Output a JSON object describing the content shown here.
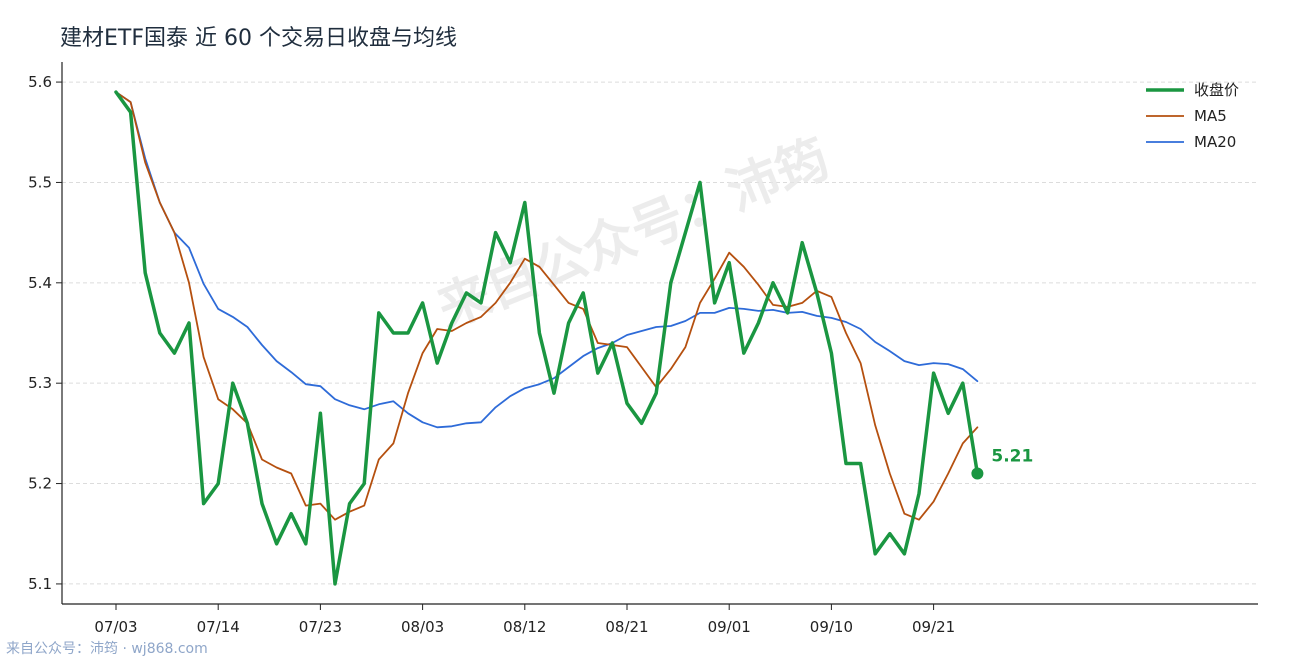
{
  "chart_data": {
    "type": "line",
    "title": "建材ETF国泰 近 60 个交易日收盘与均线",
    "watermark": "来自公众号：沛筠",
    "footer": "来自公众号：沛筠 · wj868.com",
    "xlabel": "",
    "ylabel": "",
    "ylim": [
      5.08,
      5.62
    ],
    "yticks": [
      "5.1",
      "5.2",
      "5.3",
      "5.4",
      "5.5",
      "5.6"
    ],
    "xticks": [
      {
        "index": 0,
        "label": "07/03"
      },
      {
        "index": 7,
        "label": "07/14"
      },
      {
        "index": 14,
        "label": "07/23"
      },
      {
        "index": 21,
        "label": "08/03"
      },
      {
        "index": 28,
        "label": "08/12"
      },
      {
        "index": 35,
        "label": "08/21"
      },
      {
        "index": 42,
        "label": "09/01"
      },
      {
        "index": 49,
        "label": "09/10"
      },
      {
        "index": 56,
        "label": "09/21"
      }
    ],
    "grid": "horizontal dashed",
    "legend_position": "top-right",
    "last_value_label": "5.21",
    "series": [
      {
        "name": "收盘价",
        "color": "#1a9641",
        "width": 3.5,
        "values": [
          5.59,
          5.57,
          5.41,
          5.35,
          5.33,
          5.36,
          5.18,
          5.2,
          5.3,
          5.26,
          5.18,
          5.14,
          5.17,
          5.14,
          5.27,
          5.1,
          5.18,
          5.2,
          5.37,
          5.35,
          5.35,
          5.38,
          5.32,
          5.36,
          5.39,
          5.38,
          5.45,
          5.42,
          5.48,
          5.35,
          5.29,
          5.36,
          5.39,
          5.31,
          5.34,
          5.28,
          5.26,
          5.29,
          5.4,
          5.45,
          5.5,
          5.38,
          5.42,
          5.33,
          5.36,
          5.4,
          5.37,
          5.44,
          5.39,
          5.33,
          5.22,
          5.22,
          5.13,
          5.15,
          5.13,
          5.19,
          5.31,
          5.27,
          5.3,
          5.21
        ]
      },
      {
        "name": "MA5",
        "color": "#b5500f",
        "width": 1.8,
        "values": [
          5.59,
          5.58,
          5.52,
          5.48,
          5.45,
          5.4,
          5.326,
          5.284,
          5.274,
          5.26,
          5.224,
          5.216,
          5.21,
          5.178,
          5.18,
          5.164,
          5.172,
          5.178,
          5.224,
          5.24,
          5.29,
          5.33,
          5.354,
          5.352,
          5.36,
          5.366,
          5.38,
          5.4,
          5.424,
          5.416,
          5.398,
          5.38,
          5.374,
          5.34,
          5.338,
          5.336,
          5.316,
          5.296,
          5.314,
          5.336,
          5.38,
          5.404,
          5.43,
          5.416,
          5.398,
          5.378,
          5.376,
          5.38,
          5.392,
          5.386,
          5.35,
          5.32,
          5.258,
          5.21,
          5.17,
          5.164,
          5.182,
          5.21,
          5.24,
          5.256
        ]
      },
      {
        "name": "MA20",
        "color": "#2e6bd8",
        "width": 1.8,
        "values": [
          5.59,
          5.58,
          5.524,
          5.48,
          5.45,
          5.435,
          5.399,
          5.374,
          5.366,
          5.356,
          5.338,
          5.322,
          5.311,
          5.299,
          5.297,
          5.284,
          5.278,
          5.274,
          5.279,
          5.282,
          5.27,
          5.261,
          5.256,
          5.257,
          5.26,
          5.261,
          5.276,
          5.287,
          5.295,
          5.299,
          5.305,
          5.316,
          5.327,
          5.335,
          5.34,
          5.348,
          5.352,
          5.356,
          5.357,
          5.362,
          5.37,
          5.37,
          5.375,
          5.374,
          5.372,
          5.373,
          5.37,
          5.371,
          5.367,
          5.365,
          5.361,
          5.354,
          5.341,
          5.332,
          5.322,
          5.318,
          5.32,
          5.319,
          5.314,
          5.302
        ]
      }
    ]
  }
}
